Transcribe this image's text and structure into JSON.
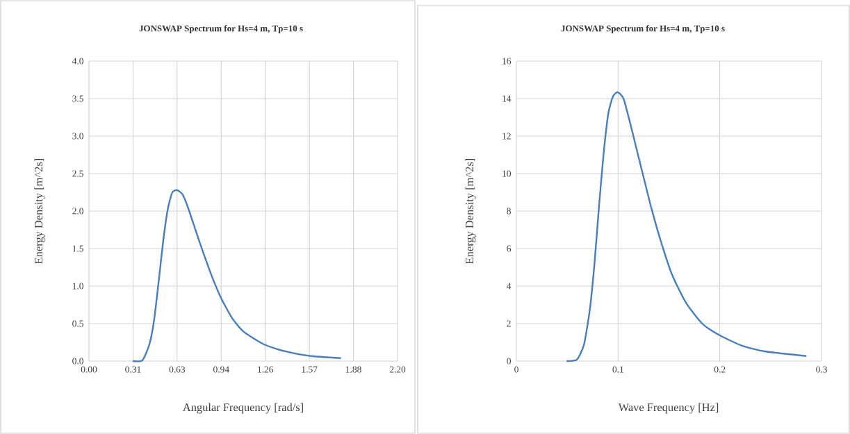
{
  "chart_data": [
    {
      "type": "line",
      "title": "JONSWAP Spectrum for Hs=4 m, Tp=10 s",
      "xlabel": "Angular Frequency [rad/s]",
      "ylabel": "Energy Density [m^2s]",
      "xlim": [
        0,
        2.1991
      ],
      "xticks": [
        {
          "value": 0,
          "label": "0.00"
        },
        {
          "value": 0.3142,
          "label": "0.31"
        },
        {
          "value": 0.6283,
          "label": "0.63"
        },
        {
          "value": 0.9425,
          "label": "0.94"
        },
        {
          "value": 1.2566,
          "label": "1.26"
        },
        {
          "value": 1.5708,
          "label": "1.57"
        },
        {
          "value": 1.885,
          "label": "1.88"
        },
        {
          "value": 2.1991,
          "label": "2.20"
        }
      ],
      "ylim": [
        0,
        4
      ],
      "yticks": [
        {
          "value": 0,
          "label": "0.0"
        },
        {
          "value": 0.5,
          "label": "0.5"
        },
        {
          "value": 1,
          "label": "1.0"
        },
        {
          "value": 1.5,
          "label": "1.5"
        },
        {
          "value": 2,
          "label": "2.0"
        },
        {
          "value": 2.5,
          "label": "2.5"
        },
        {
          "value": 3,
          "label": "3.0"
        },
        {
          "value": 3.5,
          "label": "3.5"
        },
        {
          "value": 4,
          "label": "4.0"
        }
      ],
      "grid": true,
      "series": [
        {
          "color": "#4a7ebb",
          "x": [
            0.312,
            0.381,
            0.43,
            0.463,
            0.496,
            0.529,
            0.562,
            0.594,
            0.627,
            0.668,
            0.709,
            0.759,
            0.808,
            0.874,
            0.939,
            1.021,
            1.103,
            1.251,
            1.399,
            1.571,
            1.796
          ],
          "values": [
            0,
            0.01,
            0.22,
            0.53,
            1.05,
            1.6,
            2.03,
            2.25,
            2.28,
            2.22,
            2.03,
            1.75,
            1.48,
            1.14,
            0.85,
            0.57,
            0.39,
            0.22,
            0.13,
            0.07,
            0.04
          ]
        }
      ]
    },
    {
      "type": "line",
      "title": "JONSWAP Spectrum for Hs=4 m, Tp=10 s",
      "xlabel": "Wave Frequency [Hz]",
      "ylabel": "Energy Density [m^2s]",
      "xlim": [
        0,
        0.3
      ],
      "xticks": [
        0,
        0.1,
        0.2,
        0.3
      ],
      "ylim": [
        0,
        16
      ],
      "yticks": [
        0,
        2,
        4,
        6,
        8,
        10,
        12,
        14,
        16
      ],
      "grid": true,
      "series": [
        {
          "color": "#4a7ebb",
          "x": [
            0.0494,
            0.0597,
            0.0665,
            0.0722,
            0.0768,
            0.0813,
            0.0859,
            0.0905,
            0.095,
            0.0996,
            0.1053,
            0.1121,
            0.1189,
            0.1257,
            0.1326,
            0.1417,
            0.1531,
            0.1667,
            0.1827,
            0.1998,
            0.2214,
            0.2442,
            0.2852
          ],
          "values": [
            0,
            0.09,
            0.89,
            2.74,
            5.22,
            8.31,
            11.15,
            13.25,
            14.12,
            14.34,
            14.0,
            12.64,
            11.15,
            9.67,
            8.18,
            6.45,
            4.6,
            3.12,
            2.0,
            1.38,
            0.83,
            0.52,
            0.27
          ]
        }
      ]
    }
  ]
}
